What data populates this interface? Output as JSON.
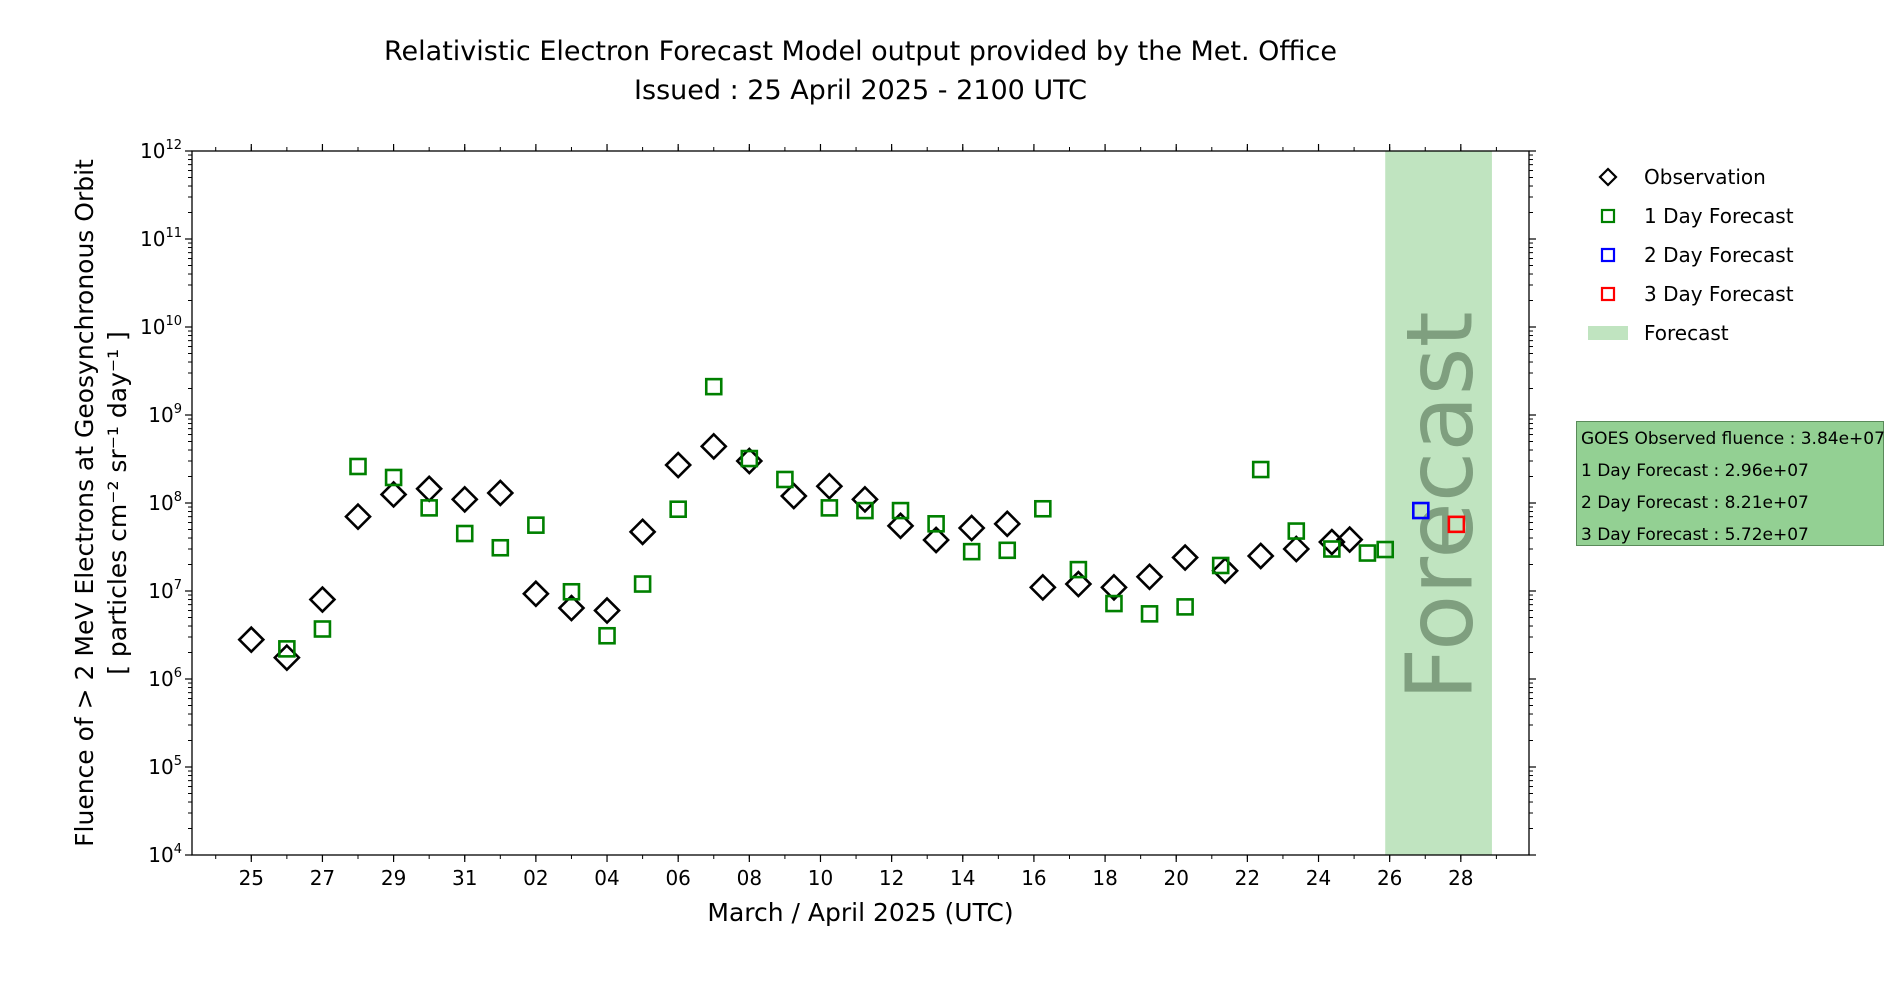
{
  "title_line1": "Relativistic Electron Forecast Model output provided by the Met. Office",
  "title_line2": "Issued : 25 April 2025 - 2100 UTC",
  "info_box": {
    "line1": "GOES Observed fluence : 3.84e+07",
    "line2": "1 Day Forecast : 2.96e+07",
    "line3": "2 Day Forecast : 8.21e+07",
    "line4": "3 Day Forecast : 5.72e+07"
  },
  "colors": {
    "observation": "#000000",
    "forecast_1day": "#008000",
    "forecast_2day": "#0000ff",
    "forecast_3day": "#ff0000",
    "forecast_band": "#c0e4c0",
    "forecast_text": "#7f9f7f",
    "info_box": "#93d093"
  },
  "chart_data": {
    "type": "scatter",
    "xlabel": "March / April 2025 (UTC)",
    "ylabel_line1": "Fluence of > 2 MeV Electrons at Geosynchronous Orbit",
    "ylabel_line2": "[ particles cm⁻² sr⁻¹ day⁻¹ ]",
    "yscale": "log",
    "ylim": [
      10000,
      1000000000000
    ],
    "ytick_exponents": [
      4,
      5,
      6,
      7,
      8,
      9,
      10,
      11,
      12
    ],
    "xlim": [
      "2025-03-23T08:00",
      "2025-04-29T22:00"
    ],
    "xticks": [
      {
        "date": "2025-03-25",
        "label": "25"
      },
      {
        "date": "2025-03-27",
        "label": "27"
      },
      {
        "date": "2025-03-29",
        "label": "29"
      },
      {
        "date": "2025-03-31",
        "label": "31"
      },
      {
        "date": "2025-04-02",
        "label": "02"
      },
      {
        "date": "2025-04-04",
        "label": "04"
      },
      {
        "date": "2025-04-06",
        "label": "06"
      },
      {
        "date": "2025-04-08",
        "label": "08"
      },
      {
        "date": "2025-04-10",
        "label": "10"
      },
      {
        "date": "2025-04-12",
        "label": "12"
      },
      {
        "date": "2025-04-14",
        "label": "14"
      },
      {
        "date": "2025-04-16",
        "label": "16"
      },
      {
        "date": "2025-04-18",
        "label": "18"
      },
      {
        "date": "2025-04-20",
        "label": "20"
      },
      {
        "date": "2025-04-22",
        "label": "22"
      },
      {
        "date": "2025-04-24",
        "label": "24"
      },
      {
        "date": "2025-04-26",
        "label": "26"
      },
      {
        "date": "2025-04-28",
        "label": "28"
      }
    ],
    "forecast_band": {
      "start": "2025-04-25T21:00",
      "end": "2025-04-28T21:00",
      "label": "Forecast"
    },
    "legend_position": "right, outside plot",
    "series": [
      {
        "name": "Observation",
        "marker": "diamond",
        "color": "#000000",
        "points": [
          {
            "x": "2025-03-25T00:00",
            "y": 2800000.0
          },
          {
            "x": "2025-03-26T00:00",
            "y": 1750000.0
          },
          {
            "x": "2025-03-27T00:00",
            "y": 8000000.0
          },
          {
            "x": "2025-03-28T00:00",
            "y": 70000000.0
          },
          {
            "x": "2025-03-29T00:00",
            "y": 125000000.0
          },
          {
            "x": "2025-03-30T00:00",
            "y": 145000000.0
          },
          {
            "x": "2025-03-31T00:00",
            "y": 110000000.0
          },
          {
            "x": "2025-04-01T00:00",
            "y": 130000000.0
          },
          {
            "x": "2025-04-02T00:00",
            "y": 9300000.0
          },
          {
            "x": "2025-04-03T00:00",
            "y": 6400000.0
          },
          {
            "x": "2025-04-04T00:00",
            "y": 6000000.0
          },
          {
            "x": "2025-04-05T00:00",
            "y": 47000000.0
          },
          {
            "x": "2025-04-06T00:00",
            "y": 270000000.0
          },
          {
            "x": "2025-04-07T00:00",
            "y": 440000000.0
          },
          {
            "x": "2025-04-08T00:00",
            "y": 300000000.0
          },
          {
            "x": "2025-04-09T06:00",
            "y": 120000000.0
          },
          {
            "x": "2025-04-10T06:00",
            "y": 155000000.0
          },
          {
            "x": "2025-04-11T06:00",
            "y": 110000000.0
          },
          {
            "x": "2025-04-12T06:00",
            "y": 55000000.0
          },
          {
            "x": "2025-04-13T06:00",
            "y": 38000000.0
          },
          {
            "x": "2025-04-14T06:00",
            "y": 52000000.0
          },
          {
            "x": "2025-04-15T06:00",
            "y": 58000000.0
          },
          {
            "x": "2025-04-16T06:00",
            "y": 11000000.0
          },
          {
            "x": "2025-04-17T06:00",
            "y": 12000000.0
          },
          {
            "x": "2025-04-18T06:00",
            "y": 11000000.0
          },
          {
            "x": "2025-04-19T06:00",
            "y": 14500000.0
          },
          {
            "x": "2025-04-20T06:00",
            "y": 24000000.0
          },
          {
            "x": "2025-04-21T09:00",
            "y": 17000000.0
          },
          {
            "x": "2025-04-22T09:00",
            "y": 25000000.0
          },
          {
            "x": "2025-04-23T09:00",
            "y": 30000000.0
          },
          {
            "x": "2025-04-24T09:00",
            "y": 36000000.0
          },
          {
            "x": "2025-04-24T21:00",
            "y": 38400000.0
          }
        ]
      },
      {
        "name": "1 Day Forecast",
        "marker": "square",
        "color": "#008000",
        "points": [
          {
            "x": "2025-03-26T00:00",
            "y": 2200000.0
          },
          {
            "x": "2025-03-27T00:00",
            "y": 3700000.0
          },
          {
            "x": "2025-03-28T00:00",
            "y": 260000000.0
          },
          {
            "x": "2025-03-29T00:00",
            "y": 195000000.0
          },
          {
            "x": "2025-03-30T00:00",
            "y": 88000000.0
          },
          {
            "x": "2025-03-31T00:00",
            "y": 45000000.0
          },
          {
            "x": "2025-04-01T00:00",
            "y": 31000000.0
          },
          {
            "x": "2025-04-02T00:00",
            "y": 56000000.0
          },
          {
            "x": "2025-04-03T00:00",
            "y": 9800000.0
          },
          {
            "x": "2025-04-04T00:00",
            "y": 3100000.0
          },
          {
            "x": "2025-04-05T00:00",
            "y": 12000000.0
          },
          {
            "x": "2025-04-06T00:00",
            "y": 85000000.0
          },
          {
            "x": "2025-04-07T00:00",
            "y": 2100000000.0
          },
          {
            "x": "2025-04-08T00:00",
            "y": 320000000.0
          },
          {
            "x": "2025-04-09T00:00",
            "y": 185000000.0
          },
          {
            "x": "2025-04-10T06:00",
            "y": 88000000.0
          },
          {
            "x": "2025-04-11T06:00",
            "y": 82000000.0
          },
          {
            "x": "2025-04-12T06:00",
            "y": 82000000.0
          },
          {
            "x": "2025-04-13T06:00",
            "y": 58000000.0
          },
          {
            "x": "2025-04-14T06:00",
            "y": 28000000.0
          },
          {
            "x": "2025-04-15T06:00",
            "y": 29000000.0
          },
          {
            "x": "2025-04-16T06:00",
            "y": 86000000.0
          },
          {
            "x": "2025-04-17T06:00",
            "y": 17500000.0
          },
          {
            "x": "2025-04-18T06:00",
            "y": 7200000.0
          },
          {
            "x": "2025-04-19T06:00",
            "y": 5500000.0
          },
          {
            "x": "2025-04-20T06:00",
            "y": 6600000.0
          },
          {
            "x": "2025-04-21T06:00",
            "y": 19500000.0
          },
          {
            "x": "2025-04-22T09:00",
            "y": 240000000.0
          },
          {
            "x": "2025-04-23T09:00",
            "y": 48000000.0
          },
          {
            "x": "2025-04-24T09:00",
            "y": 30000000.0
          },
          {
            "x": "2025-04-25T09:00",
            "y": 27000000.0
          },
          {
            "x": "2025-04-25T21:00",
            "y": 29600000.0
          }
        ]
      },
      {
        "name": "2 Day Forecast",
        "marker": "square",
        "color": "#0000ff",
        "points": [
          {
            "x": "2025-04-26T21:00",
            "y": 82100000.0
          }
        ]
      },
      {
        "name": "3 Day Forecast",
        "marker": "square",
        "color": "#ff0000",
        "points": [
          {
            "x": "2025-04-27T21:00",
            "y": 57200000.0
          }
        ]
      }
    ],
    "legend": [
      {
        "label": "Observation",
        "marker": "diamond",
        "color": "#000000"
      },
      {
        "label": "1 Day Forecast",
        "marker": "square",
        "color": "#008000"
      },
      {
        "label": "2 Day Forecast",
        "marker": "square",
        "color": "#0000ff"
      },
      {
        "label": "3 Day Forecast",
        "marker": "square",
        "color": "#ff0000"
      },
      {
        "label": "Forecast",
        "marker": "band",
        "color": "#c0e4c0"
      }
    ]
  }
}
